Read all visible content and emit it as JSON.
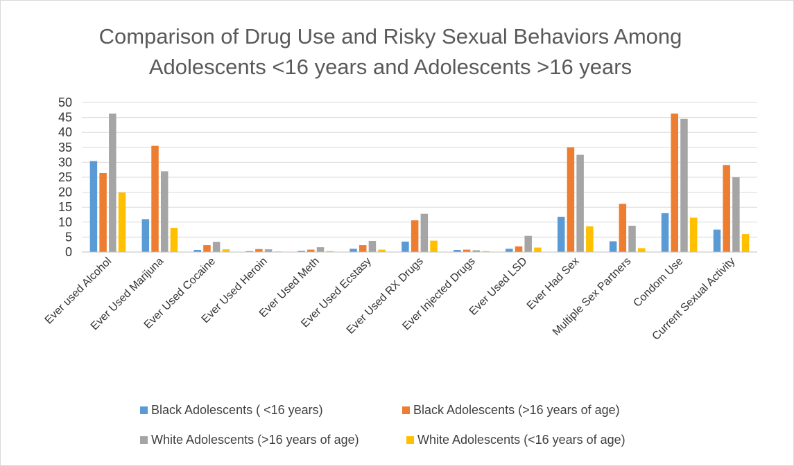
{
  "chart_data": {
    "type": "bar",
    "title_lines": [
      "Comparison of Drug Use and Risky Sexual Behaviors Among",
      "Adolescents <16 years and Adolescents >16 years"
    ],
    "xlabel": "",
    "ylabel": "",
    "ylim": [
      0,
      50
    ],
    "yticks": [
      0,
      5,
      10,
      15,
      20,
      25,
      30,
      35,
      40,
      45,
      50
    ],
    "grid": true,
    "legend_position": "bottom",
    "categories": [
      "Ever used Alcohol",
      "Ever Used Marijuna",
      "Ever Used Cocaine",
      "Ever Used Heroin",
      "Ever Used Meth",
      "Ever Used Ecstasy",
      "Ever Used RX Drugs",
      "Ever Injected Drugs",
      "Ever Used LSD",
      "Ever Had Sex",
      "Multiple Sex Partners",
      "Condom Use",
      "Current Sexual Activity"
    ],
    "series": [
      {
        "name": "Black Adolescents ( <16 years)",
        "color": "#5B9BD5",
        "values": [
          30.4,
          11.0,
          0.7,
          0.3,
          0.4,
          1.1,
          3.5,
          0.7,
          1.1,
          11.8,
          3.6,
          13.0,
          7.5
        ]
      },
      {
        "name": "Black Adolescents (>16 years of age)",
        "color": "#ED7D31",
        "values": [
          26.4,
          35.5,
          2.3,
          1.0,
          0.8,
          2.3,
          10.6,
          0.8,
          1.9,
          35.0,
          16.1,
          46.3,
          29.1
        ]
      },
      {
        "name": "White Adolescents (>16 years of age)",
        "color": "#A5A5A5",
        "values": [
          46.3,
          27.0,
          3.4,
          0.9,
          1.6,
          3.7,
          12.8,
          0.6,
          5.4,
          32.5,
          8.8,
          44.5,
          25.0
        ]
      },
      {
        "name": "White Adolescents (<16 years of age)",
        "color": "#FFC000",
        "values": [
          19.9,
          8.1,
          0.9,
          0.2,
          0.3,
          0.8,
          3.8,
          0.3,
          1.5,
          8.6,
          1.3,
          11.5,
          6.0
        ]
      }
    ]
  }
}
